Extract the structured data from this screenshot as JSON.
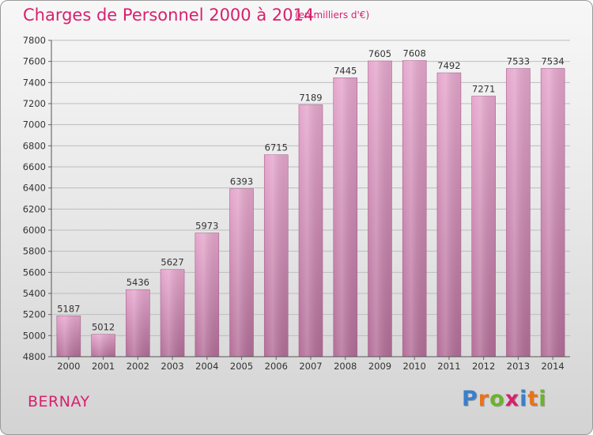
{
  "title": "Charges de Personnel 2000 à 2014",
  "subtitle": "(en milliers d'€)",
  "city": "BERNAY",
  "brand": {
    "letters": [
      "P",
      "r",
      "o",
      "x",
      "i",
      "t",
      "i"
    ],
    "colors": [
      "#3a7fc9",
      "#e8731d",
      "#6bb32e",
      "#d8206e",
      "#3a7fc9",
      "#e8731d",
      "#6bb32e"
    ]
  },
  "colors": {
    "accent": "#d8206e",
    "bar_top": "#e6a7cd",
    "bar_bottom": "#b36e98",
    "grid": "#bdbdbd",
    "text": "#333333"
  },
  "chart_data": {
    "type": "bar",
    "title": "Charges de Personnel 2000 à 2014",
    "ylabel": "en milliers d'€",
    "xlabel": "",
    "categories": [
      "2000",
      "2001",
      "2002",
      "2003",
      "2004",
      "2005",
      "2006",
      "2007",
      "2008",
      "2009",
      "2010",
      "2011",
      "2012",
      "2013",
      "2014"
    ],
    "values": [
      5187,
      5012,
      5436,
      5627,
      5973,
      6393,
      6715,
      7189,
      7445,
      7605,
      7608,
      7492,
      7271,
      7533,
      7534
    ],
    "ylim": [
      4800,
      7800
    ],
    "yticks": [
      4800,
      5000,
      5200,
      5400,
      5600,
      5800,
      6000,
      6200,
      6400,
      6600,
      6800,
      7000,
      7200,
      7400,
      7600,
      7800
    ],
    "grid": true
  }
}
